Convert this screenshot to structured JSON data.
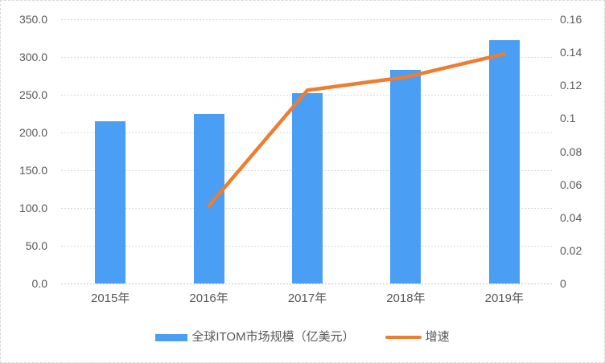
{
  "chart_data": {
    "type": "bar",
    "subtype": "combo-bar-line",
    "title": "",
    "categories": [
      "2015年",
      "2016年",
      "2017年",
      "2018年",
      "2019年"
    ],
    "series": [
      {
        "name": "全球ITOM市场规模（亿美元）",
        "type": "bar",
        "axis": "left",
        "color": "#4a9ef3",
        "values": [
          215,
          225,
          252,
          283,
          322
        ]
      },
      {
        "name": "增速",
        "type": "line",
        "axis": "right",
        "color": "#ed7d31",
        "values": [
          null,
          0.047,
          0.117,
          0.125,
          0.139
        ]
      }
    ],
    "axis_left": {
      "min": 0,
      "max": 350,
      "ticks_top_to_bottom": [
        "350.0",
        "300.0",
        "250.0",
        "200.0",
        "150.0",
        "100.0",
        "50.0",
        "0.0"
      ]
    },
    "axis_right": {
      "min": 0,
      "max": 0.16,
      "ticks_top_to_bottom": [
        "0.16",
        "0.14",
        "0.12",
        "0.1",
        "0.08",
        "0.06",
        "0.04",
        "0.02",
        "0"
      ]
    },
    "grid": true,
    "gridline_color": "#d9d9d9",
    "legend_position": "bottom",
    "text_color": "#595959"
  }
}
